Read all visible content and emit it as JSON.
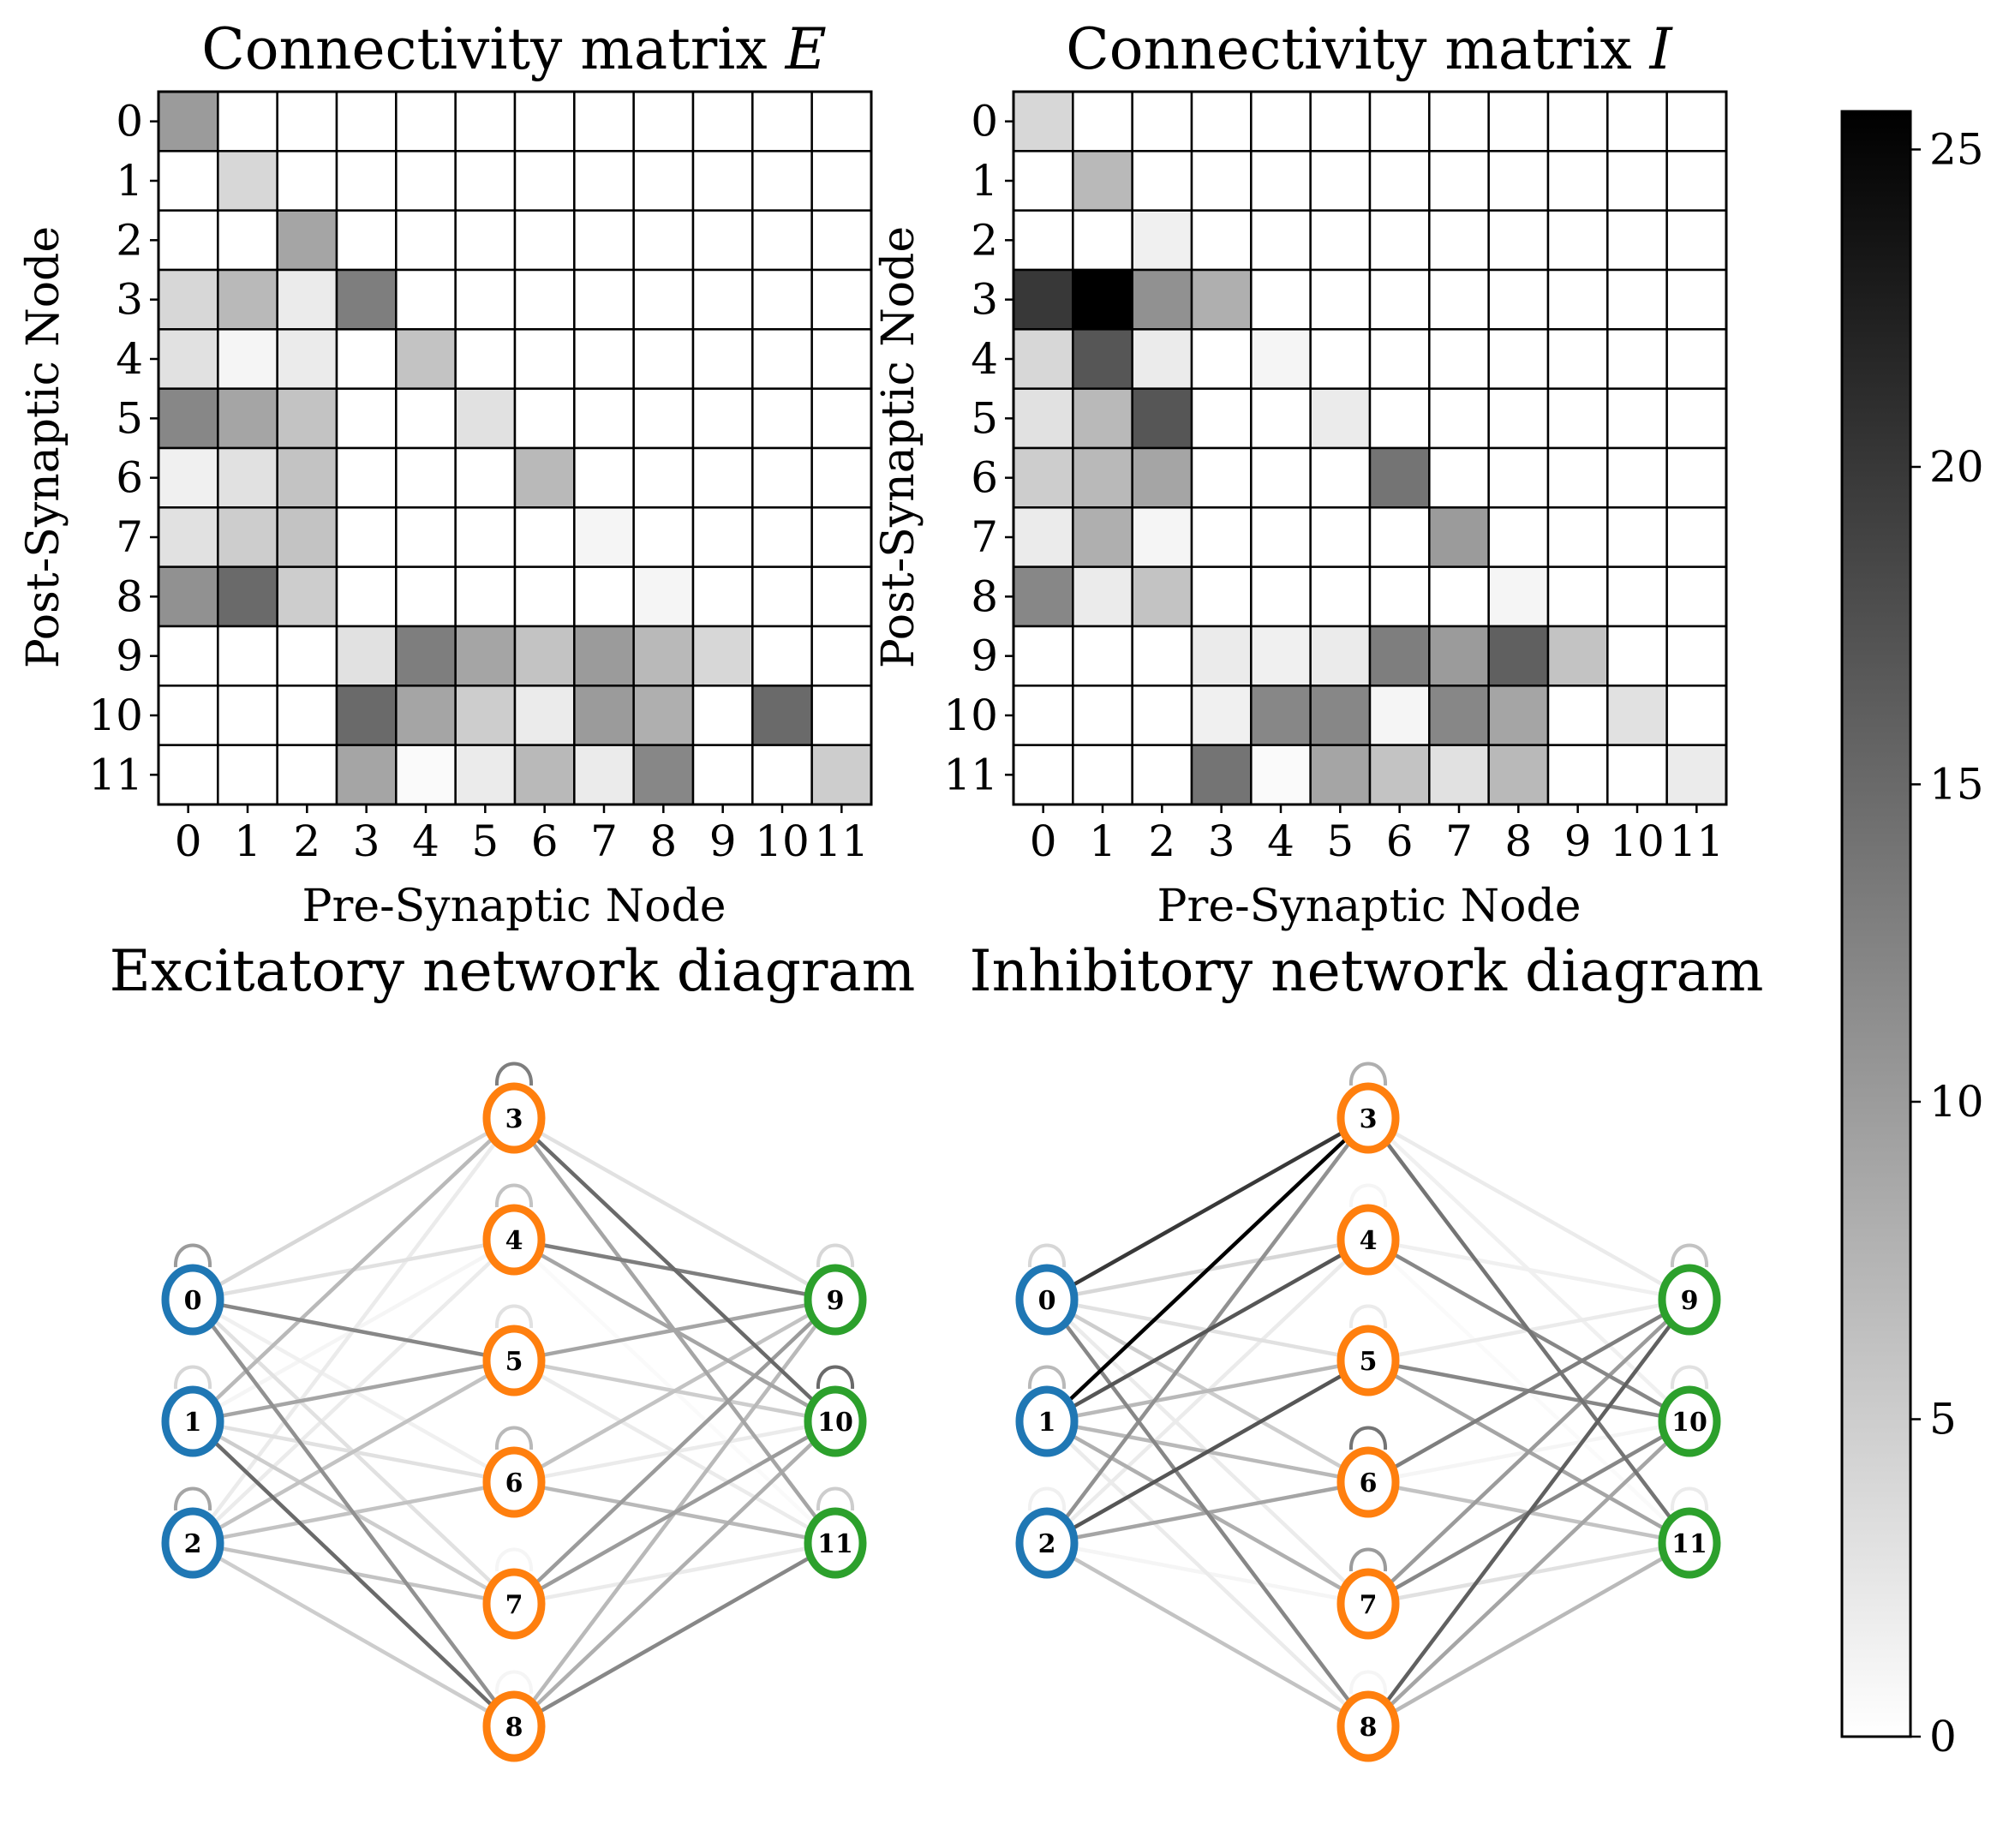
{
  "colormap": {
    "low": "#ffffff",
    "high": "#000000",
    "vmin": 0,
    "vmax": 25.6
  },
  "node_colors": {
    "input": "#1f77b4",
    "hidden": "#ff7f0e",
    "output": "#2ca02c"
  },
  "chart_data": [
    {
      "type": "heatmap",
      "title": "Connectivity matrix E",
      "xlabel": "Pre-Synaptic Node",
      "ylabel": "Post-Synaptic Node",
      "x_ticks": [
        "0",
        "1",
        "2",
        "3",
        "4",
        "5",
        "6",
        "7",
        "8",
        "9",
        "10",
        "11"
      ],
      "y_ticks": [
        "0",
        "1",
        "2",
        "3",
        "4",
        "5",
        "6",
        "7",
        "8",
        "9",
        "10",
        "11"
      ],
      "values": [
        [
          10,
          0,
          0,
          0,
          0,
          0,
          0,
          0,
          0,
          0,
          0,
          0
        ],
        [
          0,
          4,
          0,
          0,
          0,
          0,
          0,
          0,
          0,
          0,
          0,
          0
        ],
        [
          0,
          0,
          9,
          0,
          0,
          0,
          0,
          0,
          0,
          0,
          0,
          0
        ],
        [
          4,
          7,
          2,
          13,
          0,
          0,
          0,
          0,
          0,
          0,
          0,
          0
        ],
        [
          3,
          1,
          2,
          0,
          6,
          0,
          0,
          0,
          0,
          0,
          0,
          0
        ],
        [
          12,
          9,
          6,
          0,
          0,
          3,
          0,
          0,
          0,
          0,
          0,
          0
        ],
        [
          1.5,
          3,
          6,
          0,
          0,
          0,
          7,
          0,
          0,
          0,
          0,
          0
        ],
        [
          3,
          5,
          6,
          0,
          0,
          0,
          0,
          1,
          0,
          0,
          0,
          0
        ],
        [
          11,
          15,
          5,
          0,
          0,
          0,
          0,
          0,
          1,
          0,
          0,
          0
        ],
        [
          0,
          0,
          0,
          3,
          13,
          9,
          6,
          10,
          7,
          4,
          0,
          0
        ],
        [
          0,
          0,
          0,
          15,
          9,
          5,
          2,
          10,
          8,
          0,
          15,
          0
        ],
        [
          0,
          0,
          0,
          9,
          0.5,
          2,
          7,
          2,
          12,
          0,
          0,
          5
        ]
      ]
    },
    {
      "type": "heatmap",
      "title": "Connectivity matrix I",
      "xlabel": "Pre-Synaptic Node",
      "ylabel": "Post-Synaptic Node",
      "x_ticks": [
        "0",
        "1",
        "2",
        "3",
        "4",
        "5",
        "6",
        "7",
        "8",
        "9",
        "10",
        "11"
      ],
      "y_ticks": [
        "0",
        "1",
        "2",
        "3",
        "4",
        "5",
        "6",
        "7",
        "8",
        "9",
        "10",
        "11"
      ],
      "values": [
        [
          4,
          0,
          0,
          0,
          0,
          0,
          0,
          0,
          0,
          0,
          0,
          0
        ],
        [
          0,
          7,
          0,
          0,
          0,
          0,
          0,
          0,
          0,
          0,
          0,
          0
        ],
        [
          0,
          0,
          1.5,
          0,
          0,
          0,
          0,
          0,
          0,
          0,
          0,
          0
        ],
        [
          20,
          25.6,
          11,
          8,
          0,
          0,
          0,
          0,
          0,
          0,
          0,
          0
        ],
        [
          4,
          17,
          2,
          0,
          1,
          0,
          0,
          0,
          0,
          0,
          0,
          0
        ],
        [
          3,
          7,
          17,
          0,
          0,
          2,
          0,
          0,
          0,
          0,
          0,
          0
        ],
        [
          5,
          7,
          9,
          0,
          0,
          0,
          14,
          0,
          0,
          0,
          0,
          0
        ],
        [
          2,
          8,
          1,
          0,
          0,
          0,
          0,
          10,
          0,
          0,
          0,
          0
        ],
        [
          12,
          2,
          6,
          0,
          0,
          0,
          0,
          0,
          1,
          0,
          0,
          0
        ],
        [
          0,
          0,
          0,
          2,
          1.5,
          2,
          13,
          10,
          16,
          6,
          0,
          0
        ],
        [
          0,
          0,
          0,
          1.5,
          12,
          12,
          1,
          12,
          9,
          0,
          3,
          0
        ],
        [
          0,
          0,
          0,
          14,
          0.5,
          9,
          6,
          3,
          7,
          0,
          0,
          2
        ]
      ]
    },
    {
      "type": "network",
      "title": "Excitatory network diagram",
      "nodes": [
        "0",
        "1",
        "2",
        "3",
        "4",
        "5",
        "6",
        "7",
        "8",
        "9",
        "10",
        "11"
      ],
      "layers": [
        [
          "0",
          "1",
          "2"
        ],
        [
          "3",
          "4",
          "5",
          "6",
          "7",
          "8"
        ],
        [
          "9",
          "10",
          "11"
        ]
      ],
      "matrix": "Connectivity matrix E"
    },
    {
      "type": "network",
      "title": "Inhibitory network diagram",
      "nodes": [
        "0",
        "1",
        "2",
        "3",
        "4",
        "5",
        "6",
        "7",
        "8",
        "9",
        "10",
        "11"
      ],
      "layers": [
        [
          "0",
          "1",
          "2"
        ],
        [
          "3",
          "4",
          "5",
          "6",
          "7",
          "8"
        ],
        [
          "9",
          "10",
          "11"
        ]
      ],
      "matrix": "Connectivity matrix I"
    },
    {
      "type": "colorbar",
      "ticks": [
        "0",
        "5",
        "10",
        "15",
        "20",
        "25"
      ],
      "tick_values": [
        0,
        5,
        10,
        15,
        20,
        25
      ],
      "range": [
        0,
        25.6
      ]
    }
  ]
}
